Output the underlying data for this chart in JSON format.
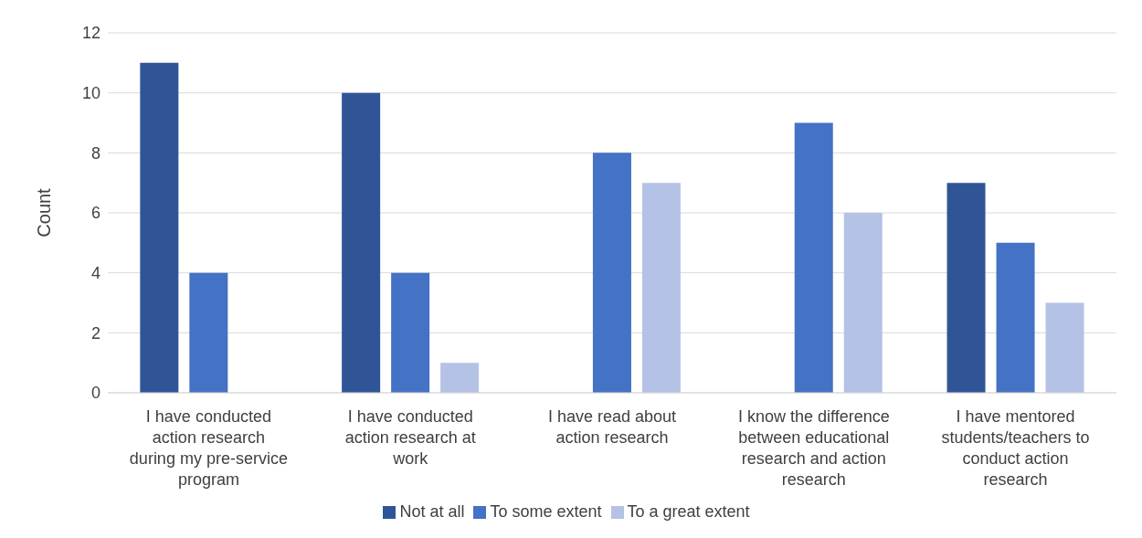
{
  "chart_data": {
    "type": "bar",
    "ylabel": "Count",
    "categories": [
      "I have conducted action research during my pre-service program",
      "I have conducted action research at work",
      "I have read about action research",
      "I know the difference between educational research and action research",
      "I have mentored students/teachers to conduct action research"
    ],
    "series": [
      {
        "name": "Not at all",
        "color": "#2f5597",
        "values": [
          11,
          10,
          0,
          0,
          7
        ]
      },
      {
        "name": "To some extent",
        "color": "#4472c4",
        "values": [
          4,
          4,
          8,
          9,
          5
        ]
      },
      {
        "name": "To a great extent",
        "color": "#b4c2e6",
        "values": [
          0,
          1,
          7,
          6,
          3
        ]
      }
    ],
    "ylim": [
      0,
      12
    ],
    "yticks": [
      0,
      2,
      4,
      6,
      8,
      10,
      12
    ],
    "grid": "y",
    "legend": "bottom"
  }
}
